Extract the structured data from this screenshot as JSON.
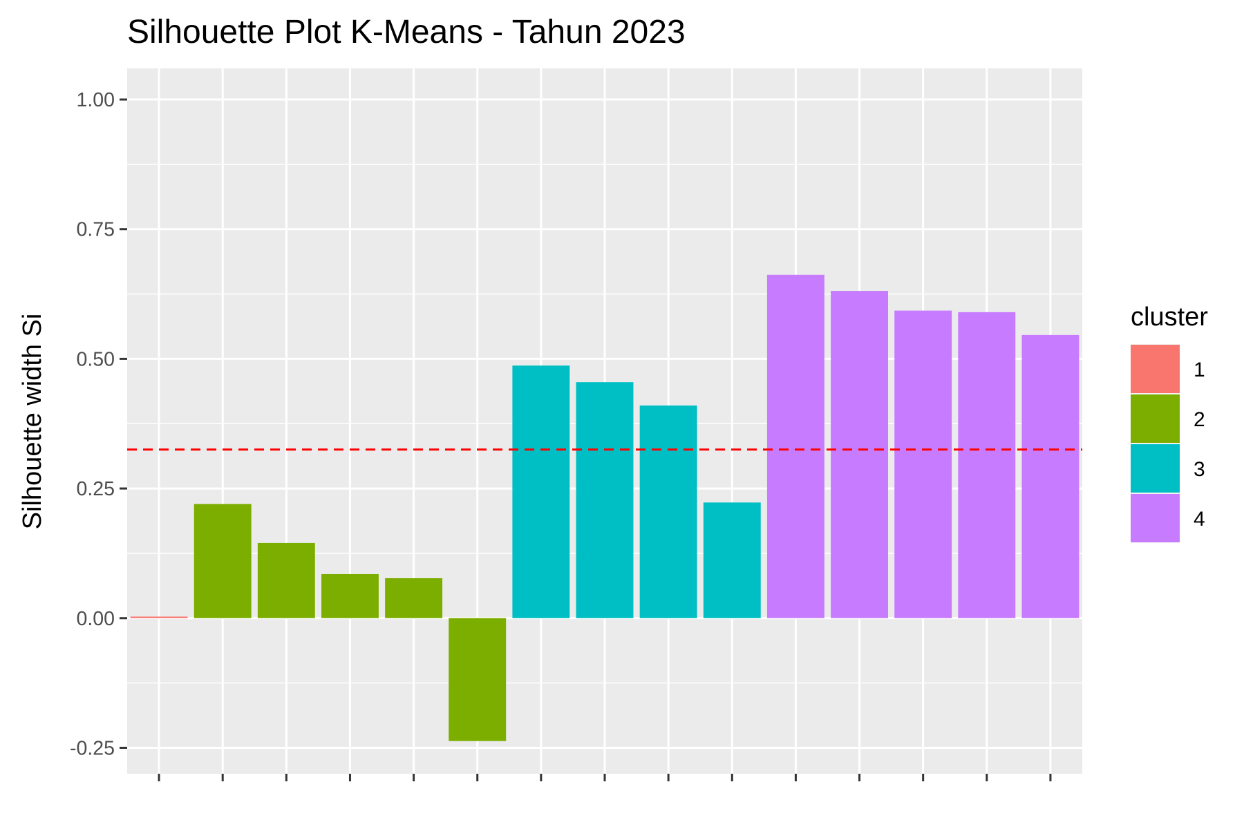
{
  "chart_data": {
    "type": "bar",
    "title": "Silhouette Plot K-Means - Tahun 2023",
    "xlabel": "",
    "ylabel": "Silhouette width Si",
    "ylim": [
      -0.3,
      1.06
    ],
    "y_ticks": [
      -0.25,
      0.0,
      0.25,
      0.5,
      0.75,
      1.0
    ],
    "y_tick_labels": [
      "-0.25",
      "0.00",
      "0.25",
      "0.50",
      "0.75",
      "1.00"
    ],
    "grid": true,
    "background_color": "#ebebeb",
    "grid_color": "#ffffff",
    "average_line": {
      "value": 0.325,
      "color": "#ff0000",
      "style": "dashed"
    },
    "legend": {
      "title": "cluster",
      "placement": "right",
      "entries": [
        {
          "label": "1",
          "color": "#f8766d"
        },
        {
          "label": "2",
          "color": "#7cae00"
        },
        {
          "label": "3",
          "color": "#00bfc4"
        },
        {
          "label": "4",
          "color": "#c77cff"
        }
      ]
    },
    "bars": [
      {
        "cluster": "1",
        "value": 0.003
      },
      {
        "cluster": "2",
        "value": 0.22
      },
      {
        "cluster": "2",
        "value": 0.145
      },
      {
        "cluster": "2",
        "value": 0.085
      },
      {
        "cluster": "2",
        "value": 0.077
      },
      {
        "cluster": "2",
        "value": -0.237
      },
      {
        "cluster": "3",
        "value": 0.487
      },
      {
        "cluster": "3",
        "value": 0.455
      },
      {
        "cluster": "3",
        "value": 0.41
      },
      {
        "cluster": "3",
        "value": 0.223
      },
      {
        "cluster": "4",
        "value": 0.662
      },
      {
        "cluster": "4",
        "value": 0.631
      },
      {
        "cluster": "4",
        "value": 0.593
      },
      {
        "cluster": "4",
        "value": 0.59
      },
      {
        "cluster": "4",
        "value": 0.546
      }
    ]
  }
}
